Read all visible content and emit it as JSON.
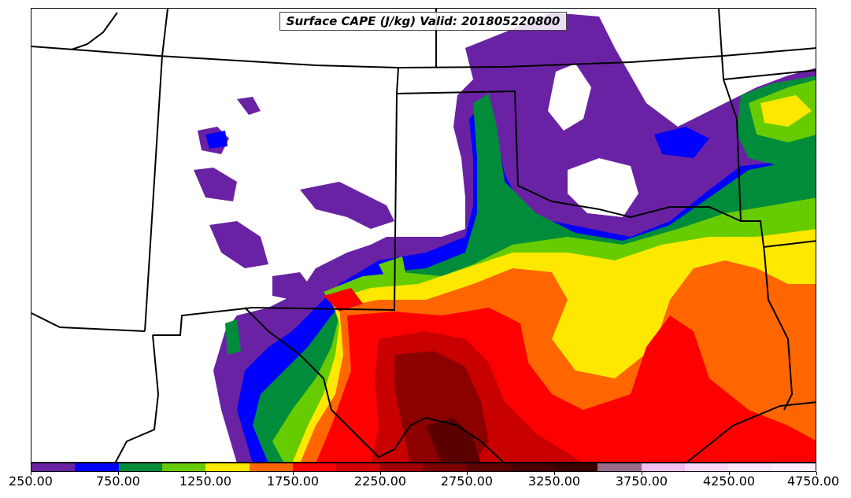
{
  "title": "Surface CAPE (J/kg) Valid: 201805220800",
  "colors": {
    "purple": "#6a22a4",
    "blue": "#0000ff",
    "dark_green": "#008c3a",
    "light_green": "#66cc00",
    "yellow": "#ffe800",
    "orange": "#ff6600",
    "red": "#ff0000",
    "dark_red": "#c80000",
    "darker_red": "#8c0000",
    "maroon": "#5a0000",
    "mauve": "#9a6a8a",
    "pink": "#f0c0f0",
    "light_pink": "#fbe0fb"
  },
  "colorbar": {
    "colors": [
      "#6a22a4",
      "#0000ff",
      "#008c3a",
      "#66cc00",
      "#ffe800",
      "#ff6600",
      "#ff0000",
      "#d20000",
      "#a00000",
      "#7a0000",
      "#5c0000",
      "#4a0000",
      "#3a0000",
      "#9a6a8a",
      "#f0c0f0",
      "#f8d8f8",
      "#fbe6fb",
      "#fdf0fd"
    ],
    "tick_labels": [
      "250.00",
      "750.00",
      "1250.00",
      "1750.00",
      "2250.00",
      "2750.00",
      "3250.00",
      "3750.00",
      "4250.00",
      "4750.00"
    ],
    "min": 250,
    "max": 4750
  }
}
